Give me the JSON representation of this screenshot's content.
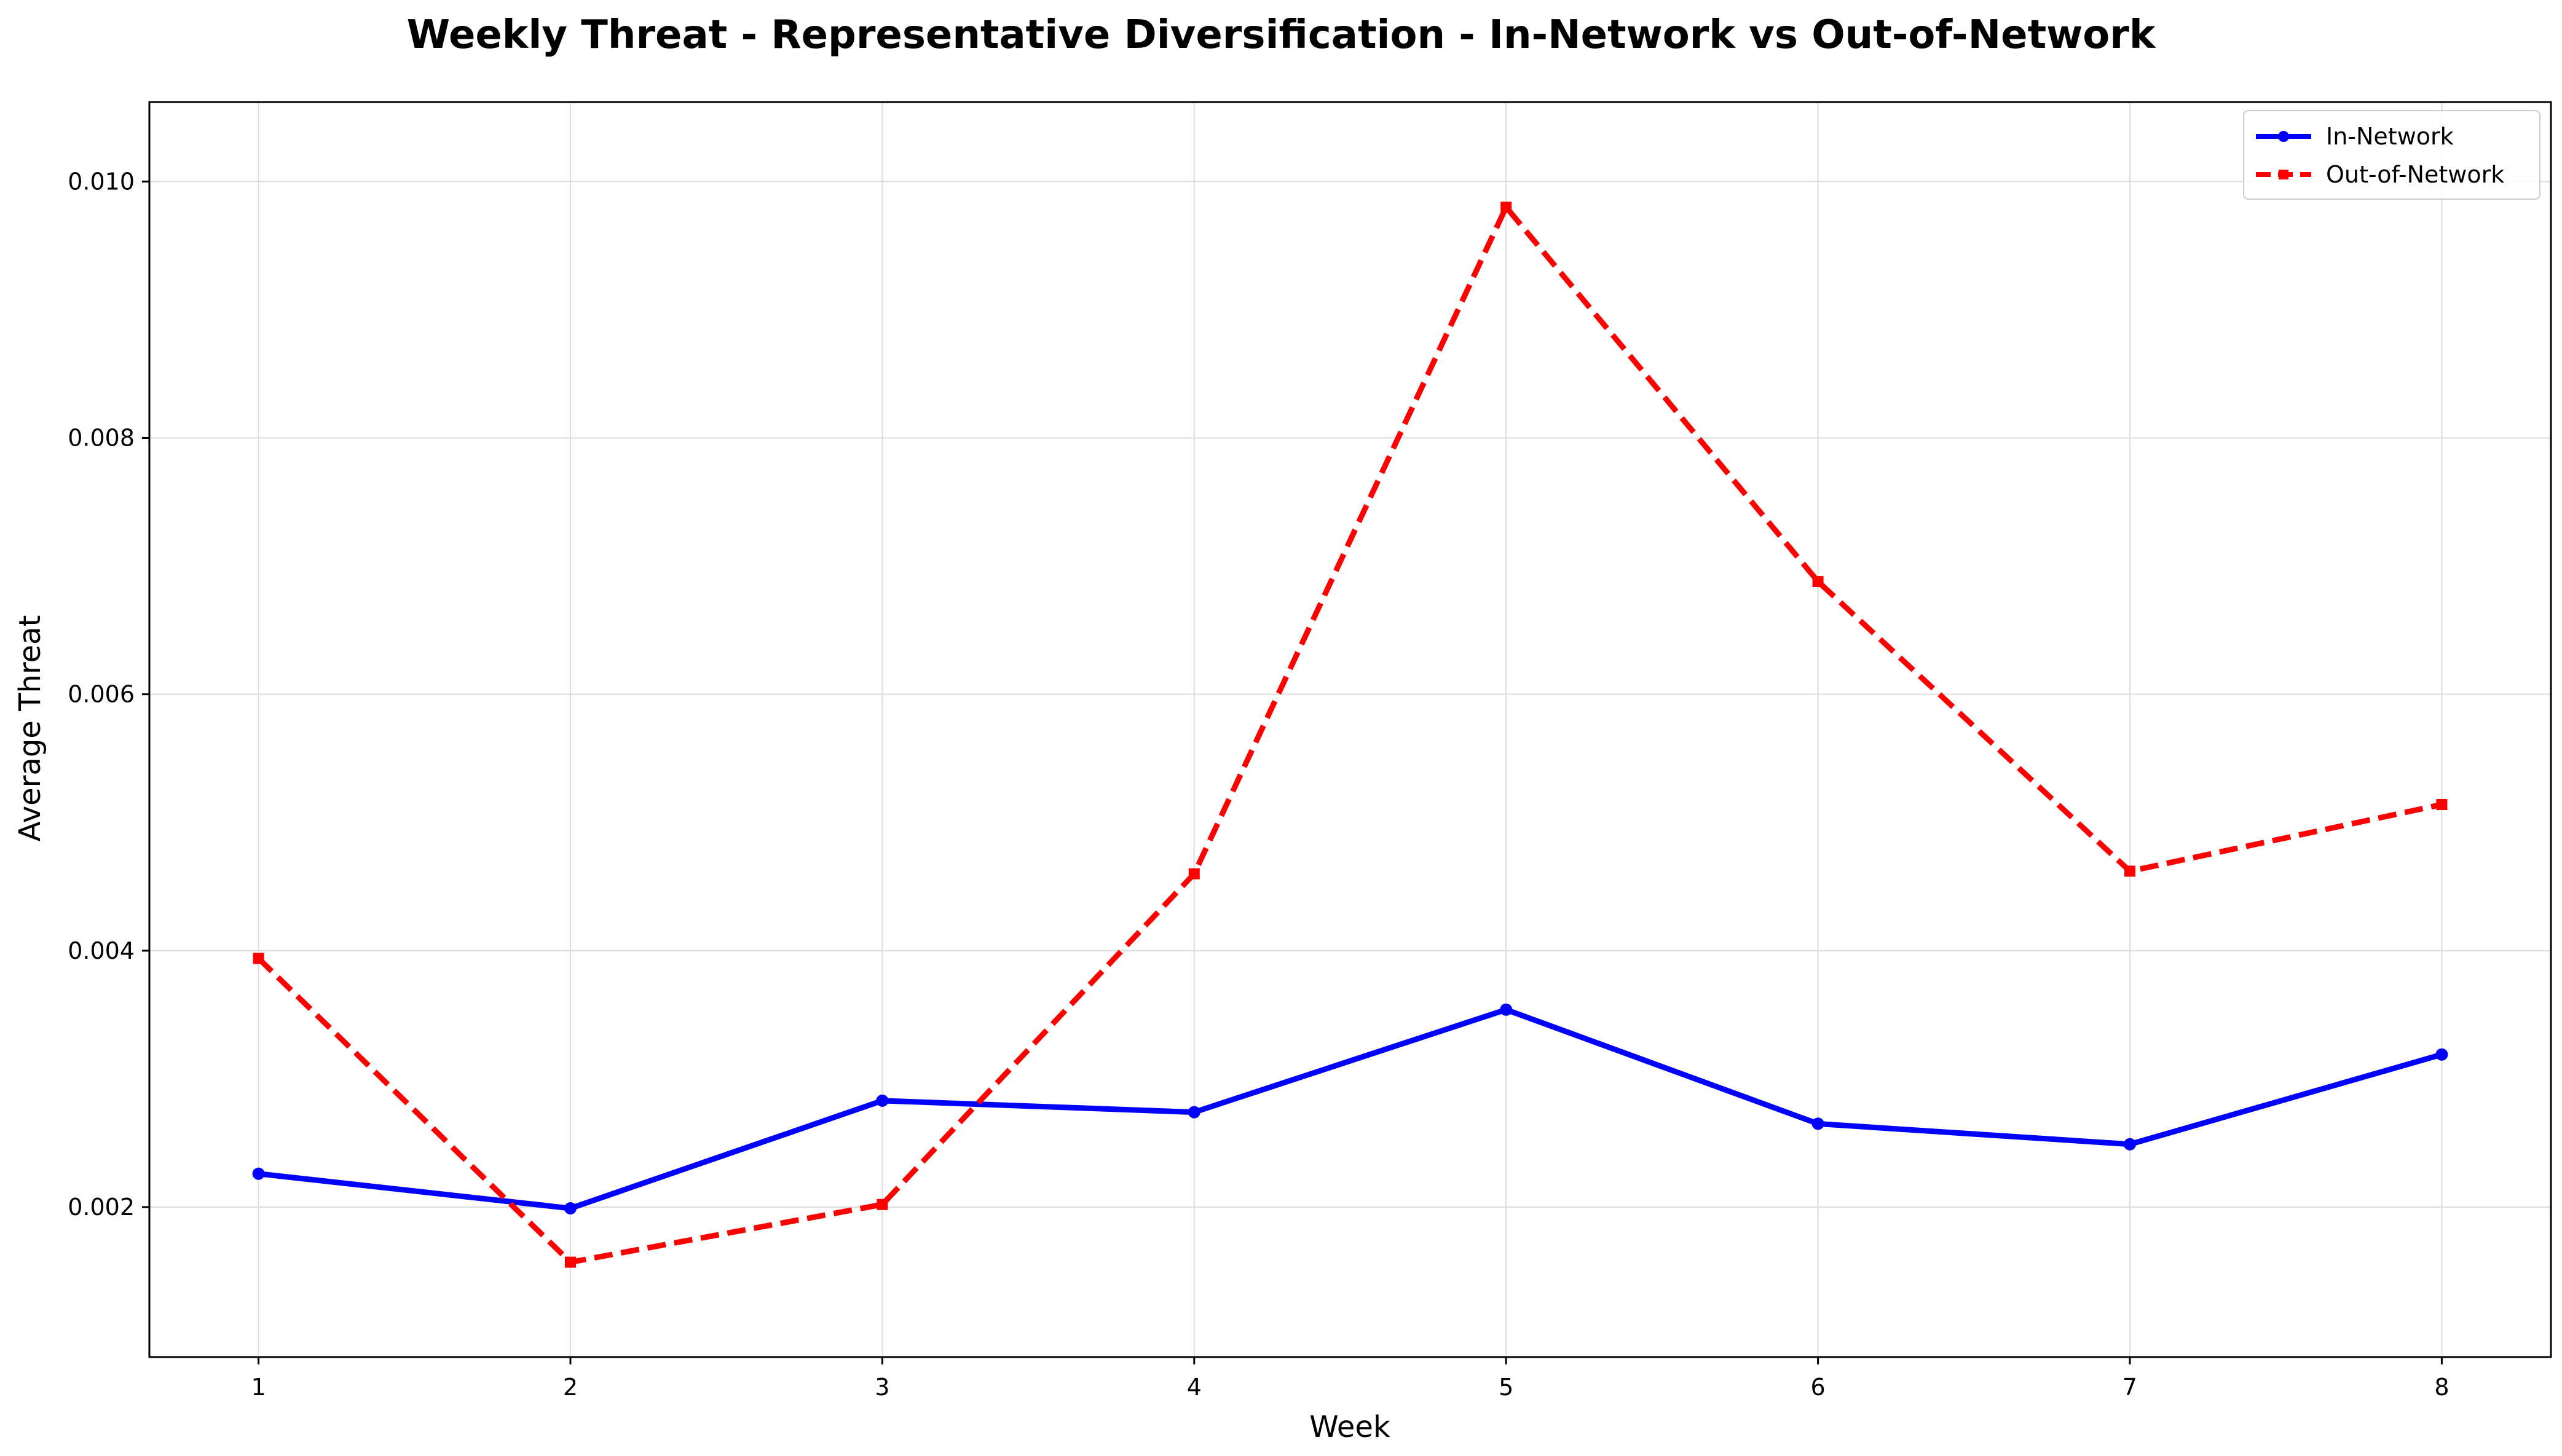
{
  "chart_data": {
    "type": "line",
    "title": "Weekly Threat - Representative Diversification - In-Network vs Out-of-Network",
    "xlabel": "Week",
    "ylabel": "Average Threat",
    "x": [
      1,
      2,
      3,
      4,
      5,
      6,
      7,
      8
    ],
    "xlim": [
      0.65,
      8.35
    ],
    "ylim": [
      0.00083,
      0.01062
    ],
    "x_ticks": [
      "1",
      "2",
      "3",
      "4",
      "5",
      "6",
      "7",
      "8"
    ],
    "y_ticks": [
      0.002,
      0.004,
      0.006,
      0.008,
      0.01
    ],
    "y_tick_labels": [
      "0.002",
      "0.004",
      "0.006",
      "0.008",
      "0.010"
    ],
    "grid": true,
    "legend_position": "top-right",
    "series": [
      {
        "name": "In-Network",
        "color": "#0000ff",
        "line_style": "solid",
        "marker": "circle",
        "values": [
          0.00226,
          0.00199,
          0.00283,
          0.00274,
          0.00354,
          0.00265,
          0.00249,
          0.00319
        ]
      },
      {
        "name": "Out-of-Network",
        "color": "#ff0000",
        "line_style": "dashed",
        "marker": "square",
        "values": [
          0.00394,
          0.00157,
          0.00202,
          0.0046,
          0.0098,
          0.00688,
          0.00462,
          0.00514
        ]
      }
    ]
  }
}
